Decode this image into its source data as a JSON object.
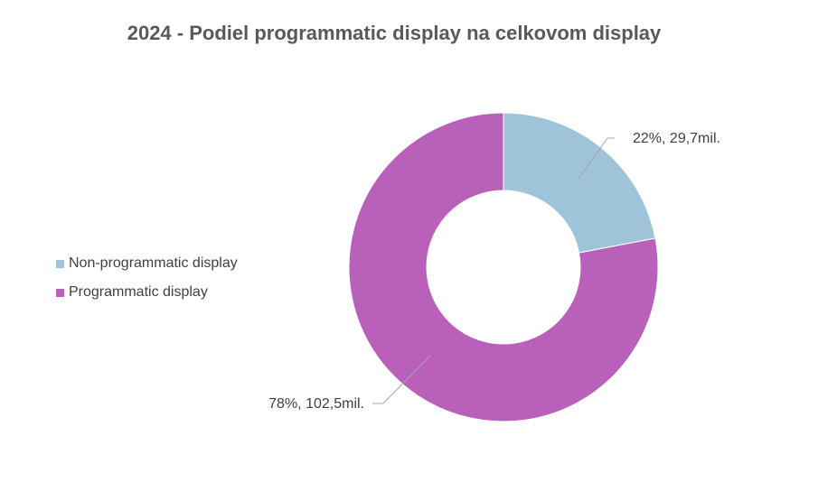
{
  "chart_data": {
    "type": "pie",
    "variant": "donut",
    "title": "2024 - Podiel programmatic display na celkovom display",
    "legend_position": "left",
    "slices": [
      {
        "name": "Non-programmatic display",
        "percent": 22,
        "value": 29.7,
        "label": "22%, 29,7mil.",
        "color": "#9fc3d8"
      },
      {
        "name": "Programmatic display",
        "percent": 78,
        "value": 102.5,
        "label": "78%, 102,5mil.",
        "color": "#b960bb"
      }
    ]
  }
}
